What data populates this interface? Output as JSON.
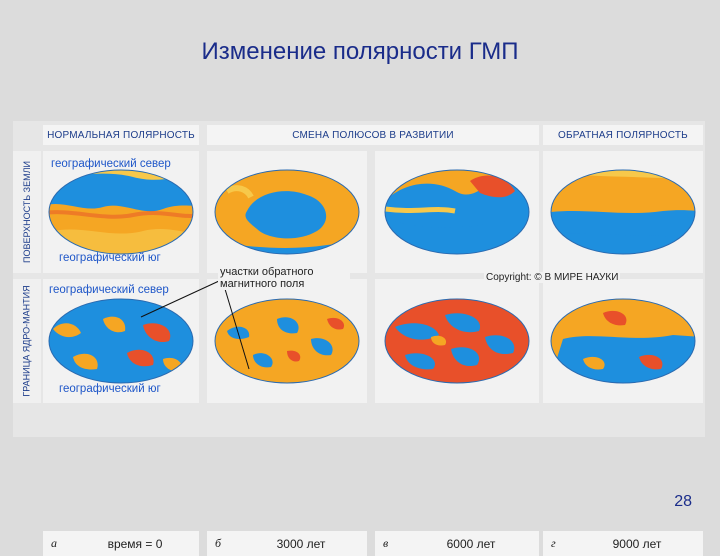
{
  "slide": {
    "title": "Изменение полярности ГМП",
    "page_number": "28"
  },
  "figure": {
    "headers": {
      "normal": "НОРМАЛЬНАЯ ПОЛЯРНОСТЬ",
      "shift": "СМЕНА ПОЛЮСОВ В РАЗВИТИИ",
      "reverse": "ОБРАТНАЯ ПОЛЯРНОСТЬ"
    },
    "row_labels": {
      "surface": "ПОВЕРХНОСТЬ ЗЕМЛИ",
      "core_mantle": "ГРАНИЦА ЯДРО-МАНТИЯ"
    },
    "geo_north_label": "географический север",
    "geo_south_label": "географический юг",
    "annotation": "участки обратного магнитного поля",
    "copyright": "Copyright: © В МИРЕ НАУКИ",
    "panels": [
      {
        "letter": "а",
        "time": "время = 0"
      },
      {
        "letter": "б",
        "time": "3000 лет"
      },
      {
        "letter": "в",
        "time": "6000 лет"
      },
      {
        "letter": "г",
        "time": "9000 лет"
      }
    ],
    "colors": {
      "blue": "#1e8fde",
      "orange": "#f5a623",
      "red": "#e8502a",
      "yellow": "#f7c84a"
    }
  }
}
